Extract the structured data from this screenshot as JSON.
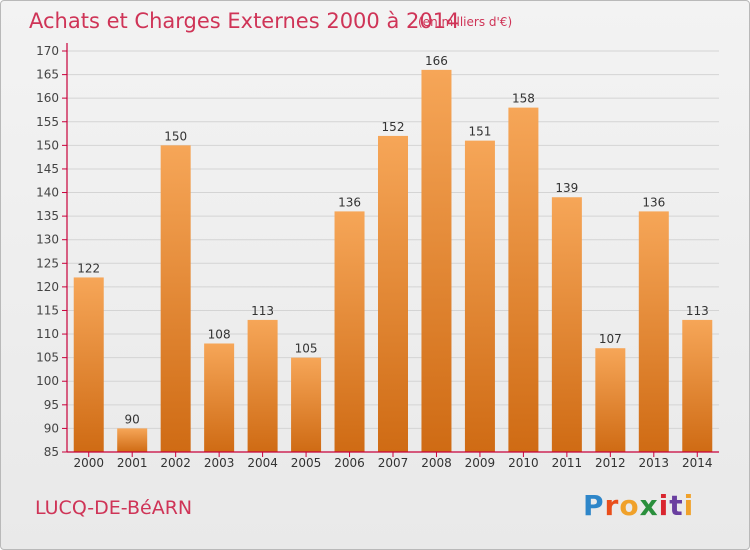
{
  "header": {
    "title": "Achats et Charges Externes 2000 à 2014",
    "subtitle": "(en milliers d'€)"
  },
  "footer": {
    "location": "LUCQ-DE-BéARN",
    "brand_letters": [
      "P",
      "r",
      "o",
      "x",
      "i",
      "t",
      "i"
    ],
    "brand_colors": [
      "#2e86c9",
      "#e94e1b",
      "#f0a12a",
      "#2a8f3c",
      "#d9262f",
      "#6a3fa0",
      "#f0a12a"
    ]
  },
  "colors": {
    "bar_top": "#f6a658",
    "bar_bottom": "#cf6b14",
    "axis": "#c8003a",
    "grid": "#d4d4d4",
    "accent_text": "#cf3457"
  },
  "chart_data": {
    "type": "bar",
    "categories": [
      "2000",
      "2001",
      "2002",
      "2003",
      "2004",
      "2005",
      "2006",
      "2007",
      "2008",
      "2009",
      "2010",
      "2011",
      "2012",
      "2013",
      "2014"
    ],
    "values": [
      122,
      90,
      150,
      108,
      113,
      105,
      136,
      152,
      166,
      151,
      158,
      139,
      107,
      136,
      113
    ],
    "data_labels": [
      "122",
      "90",
      "150",
      "108",
      "113",
      "105",
      "136",
      "152",
      "166",
      "151",
      "158",
      "139",
      "107",
      "136",
      "113"
    ],
    "title": "Achats et Charges Externes 2000 à 2014",
    "subtitle": "(en milliers d'€)",
    "xlabel": "",
    "ylabel": "",
    "ylim": [
      85,
      170
    ],
    "yticks": [
      85,
      90,
      95,
      100,
      105,
      110,
      115,
      120,
      125,
      130,
      135,
      140,
      145,
      150,
      155,
      160,
      165,
      170
    ],
    "grid": true,
    "legend": "none"
  }
}
